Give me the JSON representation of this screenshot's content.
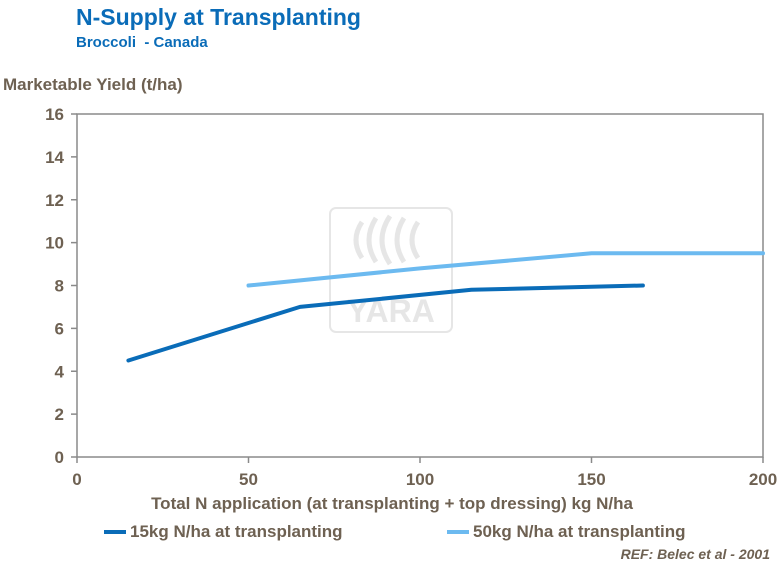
{
  "header": {
    "title": "N-Supply at Transplanting",
    "subtitle": "Broccoli  - Canada"
  },
  "footer": {
    "ref": "REF: Belec et al - 2001"
  },
  "watermark": {
    "text": "YARA"
  },
  "colors": {
    "title": "#0a6cb8",
    "axis_text": "#6e6152",
    "series_dark": "#0a6cb8",
    "series_light": "#6cbaf0"
  },
  "chart_data": {
    "type": "line",
    "title": "N-Supply at Transplanting",
    "subtitle": "Broccoli  - Canada",
    "xlabel": "Total N application (at transplanting + top dressing) kg N/ha",
    "ylabel": "Marketable Yield (t/ha)",
    "xlim": [
      0,
      200
    ],
    "ylim": [
      0,
      16
    ],
    "xticks": [
      0,
      50,
      100,
      150,
      200
    ],
    "yticks": [
      0,
      2,
      4,
      6,
      8,
      10,
      12,
      14,
      16
    ],
    "grid": false,
    "legend_position": "bottom",
    "series": [
      {
        "name": "15kg N/ha at transplanting",
        "color": "#0a6cb8",
        "x": [
          15,
          65,
          115,
          165
        ],
        "y": [
          4.5,
          7.0,
          7.8,
          8.0
        ]
      },
      {
        "name": "50kg N/ha at transplanting",
        "color": "#6cbaf0",
        "x": [
          50,
          100,
          150,
          200
        ],
        "y": [
          8.0,
          8.8,
          9.5,
          9.5
        ]
      }
    ]
  }
}
